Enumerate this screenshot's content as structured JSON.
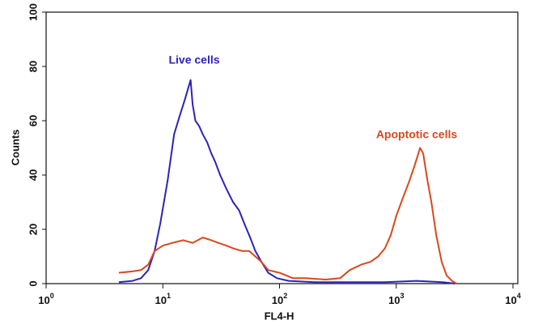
{
  "chart_data": {
    "type": "line",
    "xlabel": "FL4-H",
    "ylabel": "Counts",
    "xscale": "log",
    "xlim": [
      1,
      10000
    ],
    "xticks": [
      {
        "value": 1,
        "label": "10",
        "exponent": "0"
      },
      {
        "value": 10,
        "label": "10",
        "exponent": "1"
      },
      {
        "value": 100,
        "label": "10",
        "exponent": "2"
      },
      {
        "value": 1000,
        "label": "10",
        "exponent": "3"
      },
      {
        "value": 10000,
        "label": "10",
        "exponent": "4"
      }
    ],
    "ylim": [
      0,
      100
    ],
    "yticks": [
      0,
      20,
      40,
      60,
      80,
      100
    ],
    "series": [
      {
        "name": "Live cells",
        "color": "#2b24b8",
        "x": [
          4.2,
          5.5,
          6.5,
          7.5,
          8.5,
          9.5,
          11,
          12.5,
          14,
          15.5,
          16.5,
          17.3,
          18,
          19,
          20.5,
          22,
          24,
          26,
          28,
          31,
          35,
          40,
          45,
          50,
          56,
          62,
          70,
          80,
          95,
          120,
          200,
          400,
          800,
          1500,
          2500,
          3200
        ],
        "values": [
          0.5,
          1,
          2,
          5,
          12,
          22,
          38,
          55,
          62,
          68,
          72,
          75,
          66,
          60,
          58,
          55,
          52,
          48,
          45,
          40,
          35,
          30,
          27,
          22,
          17,
          12,
          8,
          4,
          2,
          1,
          0.5,
          0.5,
          0.5,
          1,
          0.5,
          0
        ]
      },
      {
        "name": "Apoptotic cells",
        "color": "#d9481e",
        "x": [
          4.2,
          5.5,
          6.5,
          7.5,
          8.5,
          10,
          12,
          15,
          18,
          22,
          26,
          30,
          35,
          40,
          48,
          55,
          62,
          70,
          80,
          100,
          130,
          170,
          250,
          330,
          400,
          500,
          600,
          700,
          800,
          900,
          1000,
          1150,
          1300,
          1450,
          1600,
          1700,
          1850,
          2000,
          2200,
          2450,
          2700,
          3000,
          3300
        ],
        "values": [
          4,
          4.5,
          5,
          7,
          12,
          14,
          15,
          16,
          15,
          17,
          16,
          15,
          14,
          13,
          12,
          12,
          10,
          8,
          5,
          4,
          2,
          2,
          1.5,
          2,
          5,
          7,
          8,
          10,
          13,
          18,
          25,
          32,
          38,
          44,
          50,
          48,
          38,
          30,
          18,
          8,
          3,
          1,
          0
        ]
      }
    ]
  }
}
